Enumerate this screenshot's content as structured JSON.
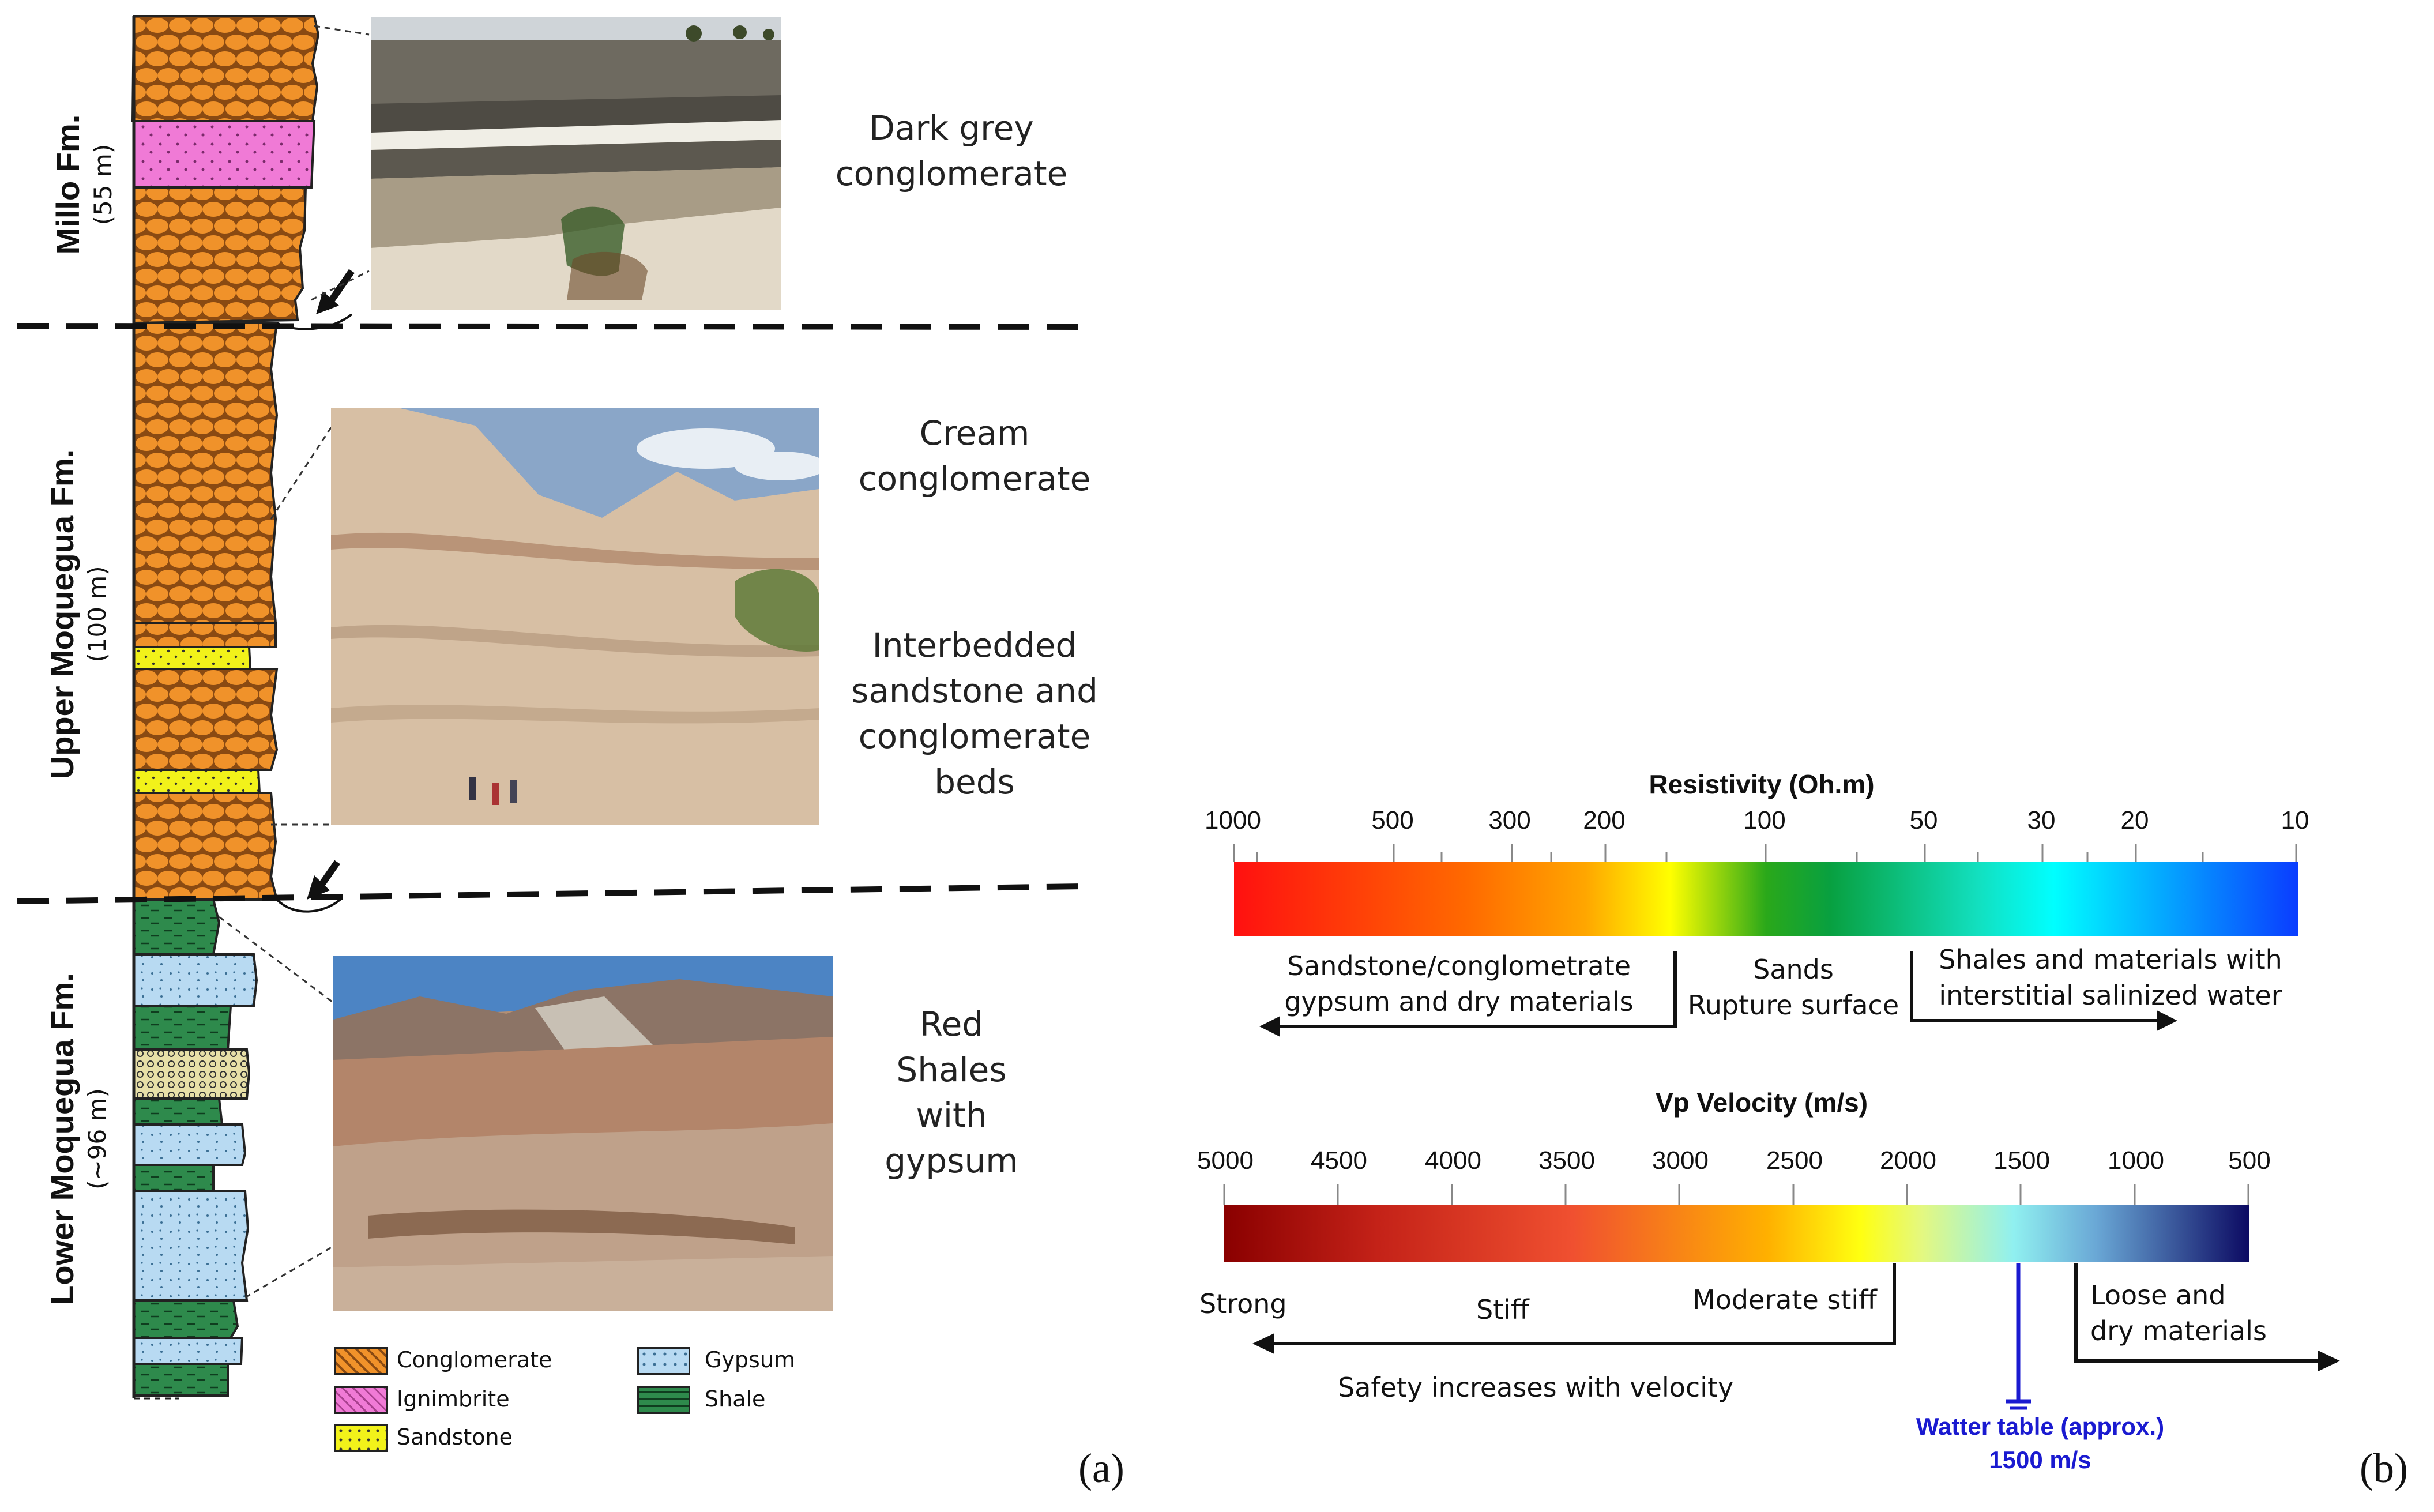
{
  "panel_a": {
    "label": "(a)",
    "formations": [
      {
        "name": "Millo Fm.",
        "thickness": "(55 m)"
      },
      {
        "name": "Upper Moquegua  Fm.",
        "thickness": "(100 m)"
      },
      {
        "name": "Lower Moquegua  Fm.",
        "thickness": "(~96 m)"
      }
    ],
    "descriptions": {
      "millo": [
        "Dark grey",
        "conglomerate"
      ],
      "upper_a": [
        "Cream",
        "conglomerate"
      ],
      "upper_b": [
        "Interbedded",
        "sandstone and",
        "conglomerate",
        "beds"
      ],
      "lower": [
        "Red",
        "Shales",
        "with",
        "gypsum"
      ]
    },
    "legend": [
      {
        "label": "Conglomerate",
        "key": "conglomerate"
      },
      {
        "label": "Ignimbrite",
        "key": "ignimbrite"
      },
      {
        "label": "Sandstone",
        "key": "sandstone"
      },
      {
        "label": "Gypsum",
        "key": "gypsum"
      },
      {
        "label": "Shale",
        "key": "shale"
      }
    ],
    "colors": {
      "conglomerate": "#f0922a",
      "ignimbrite": "#f07ad6",
      "sandstone": "#f2f21a",
      "gypsum": "#b8daf2",
      "shale": "#2e8a4c"
    }
  },
  "panel_b": {
    "label": "(b)",
    "resistivity": {
      "title": "Resistivity (Oh.m)",
      "ticks": [
        "1000",
        "500",
        "300",
        "200",
        "100",
        "50",
        "30",
        "20",
        "10"
      ],
      "ticks_values": [
        1000,
        500,
        300,
        200,
        100,
        50,
        30,
        20,
        10
      ],
      "left_label": [
        "Sandstone/conglometrate",
        "gypsum and dry materials"
      ],
      "middle_label": [
        "Sands",
        "Rupture surface"
      ],
      "right_label": [
        "Shales and materials with",
        "interstitial salinized water"
      ]
    },
    "velocity": {
      "title": "Vp Velocity (m/s)",
      "ticks": [
        "5000",
        "4500",
        "4000",
        "3500",
        "3000",
        "2500",
        "2000",
        "1500",
        "1000",
        "500"
      ],
      "label_strong": "Strong",
      "label_stiff": "Stiff",
      "label_moderate": "Moderate stiff",
      "label_loose": [
        "Loose and",
        "dry materials"
      ],
      "label_safety": "Safety increases with velocity",
      "water_table": [
        "Watter table (approx.)",
        "1500 m/s"
      ]
    }
  }
}
